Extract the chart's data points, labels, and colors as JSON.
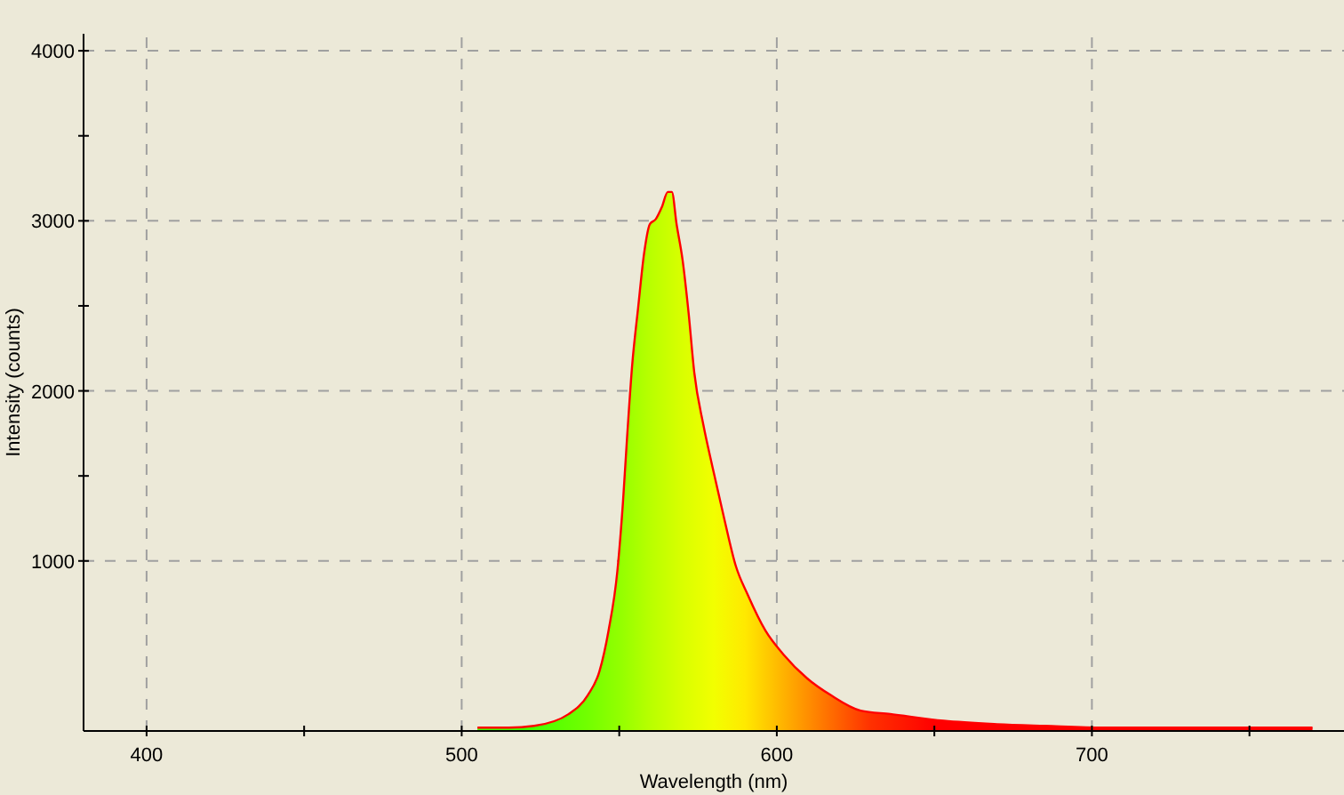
{
  "chart_data": {
    "type": "area",
    "xlabel": "Wavelength (nm)",
    "ylabel": "Intensity (counts)",
    "xlim": [
      380,
      780
    ],
    "ylim": [
      0,
      4100
    ],
    "xticks": [
      400,
      {
        "value": 450,
        "label": null
      },
      500,
      {
        "value": 550,
        "label": null
      },
      600,
      {
        "value": 650,
        "label": null
      },
      700,
      {
        "value": 750,
        "label": null
      }
    ],
    "yticks": [
      1000,
      {
        "value": 1500,
        "label": null
      },
      2000,
      {
        "value": 2500,
        "label": null
      },
      3000,
      {
        "value": 3500,
        "label": null
      },
      4000
    ],
    "grid": true,
    "series": [
      {
        "color": "#ff0000",
        "x": [
          505,
          515,
          523,
          534,
          540,
          543.7,
          546.6,
          549.4,
          551.2,
          552.5,
          554.1,
          556,
          557.9,
          559.7,
          561.6,
          563.5,
          565.4,
          566.7,
          568.2,
          570.1,
          572,
          573.8,
          576.7,
          579.5,
          583.3,
          587,
          590.8,
          596.4,
          602.1,
          609.6,
          617.2,
          626.6,
          636,
          652.9,
          669.9,
          685,
          703.8,
          730,
          770
        ],
        "values": [
          20,
          20,
          30,
          100,
          210,
          350,
          590,
          940,
          1350,
          1730,
          2150,
          2490,
          2810,
          2980,
          3010,
          3080,
          3170,
          3170,
          2980,
          2770,
          2460,
          2110,
          1800,
          1560,
          1250,
          970,
          800,
          590,
          450,
          310,
          210,
          120,
          100,
          60,
          40,
          30,
          20,
          20,
          20
        ]
      }
    ]
  }
}
